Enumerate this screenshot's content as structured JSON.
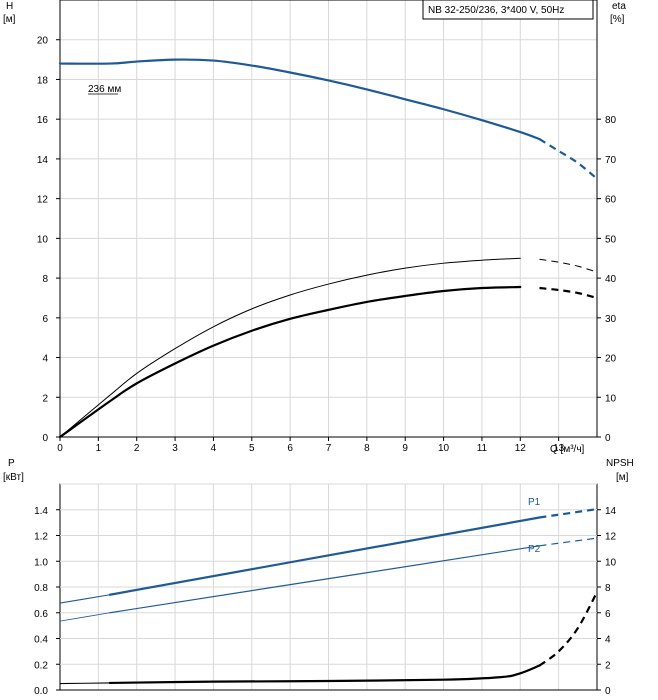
{
  "header": {
    "title": "NB 32-250/236, 3*400 V, 50Hz"
  },
  "colors": {
    "blue": "#1f5a96",
    "black": "#000000",
    "grid": "#d8d8d8"
  },
  "chart_data": [
    {
      "type": "line",
      "id": "upper",
      "x_axis": {
        "label": "Q [м³/ч]",
        "range": [
          0,
          14
        ],
        "ticks": [
          "0",
          "1",
          "2",
          "3",
          "4",
          "5",
          "6",
          "7",
          "8",
          "9",
          "10",
          "11",
          "12",
          "13"
        ]
      },
      "y_left": {
        "label_line1": "H",
        "label_line2": "[м]",
        "range": [
          0,
          22
        ],
        "ticks": [
          "0",
          "2",
          "4",
          "6",
          "8",
          "10",
          "12",
          "14",
          "16",
          "18",
          "20"
        ]
      },
      "y_right": {
        "label_line1": "eta",
        "label_line2": "[%]",
        "range": [
          0,
          110
        ],
        "ticks": [
          "0",
          "10",
          "20",
          "30",
          "40",
          "50",
          "60",
          "70",
          "80"
        ]
      },
      "annotation": "236 мм",
      "series": [
        {
          "role": "head",
          "axis": "left",
          "color": "#1f5a96",
          "width": 2.2,
          "solid_until": 12.5,
          "x": [
            0,
            1.3,
            2,
            3,
            4,
            5,
            6,
            7,
            8,
            9,
            10,
            11,
            12,
            12.5,
            13,
            13.5,
            14
          ],
          "y": [
            18.8,
            18.8,
            18.9,
            19.0,
            18.95,
            18.7,
            18.35,
            17.95,
            17.5,
            17.0,
            16.5,
            15.95,
            15.35,
            15.0,
            14.4,
            13.8,
            13.0
          ]
        },
        {
          "role": "efficiency-thin",
          "axis": "left",
          "color": "#000000",
          "width": 1,
          "solid_until": 12.4,
          "x": [
            0,
            1.3,
            2,
            3,
            4,
            5,
            6,
            7,
            8,
            9,
            10,
            11,
            12,
            12.5,
            13,
            13.5,
            14
          ],
          "y": [
            0,
            2.1,
            3.2,
            4.45,
            5.55,
            6.45,
            7.15,
            7.7,
            8.15,
            8.5,
            8.75,
            8.9,
            9.0,
            8.95,
            8.8,
            8.6,
            8.3
          ]
        },
        {
          "role": "efficiency-bold",
          "axis": "left",
          "color": "#000000",
          "width": 2.2,
          "solid_until": 12.4,
          "x": [
            0,
            1.3,
            2,
            3,
            4,
            5,
            6,
            7,
            8,
            9,
            10,
            11,
            12,
            12.5,
            13,
            13.5,
            14
          ],
          "y": [
            0,
            1.8,
            2.7,
            3.7,
            4.6,
            5.35,
            5.95,
            6.4,
            6.8,
            7.1,
            7.35,
            7.5,
            7.55,
            7.5,
            7.4,
            7.25,
            7.0
          ]
        }
      ]
    },
    {
      "type": "line",
      "id": "lower",
      "x_axis": {
        "range": [
          0,
          14
        ]
      },
      "y_left": {
        "label_line1": "P",
        "label_line2": "[кВт]",
        "range": [
          0,
          1.6
        ],
        "ticks": [
          "0.0",
          "0.2",
          "0.4",
          "0.6",
          "0.8",
          "1.0",
          "1.2",
          "1.4"
        ]
      },
      "y_right": {
        "label_line1": "NPSH",
        "label_line2": "[м]",
        "range": [
          0,
          16
        ],
        "ticks": [
          "0",
          "2",
          "4",
          "6",
          "8",
          "10",
          "12",
          "14"
        ]
      },
      "series": [
        {
          "name": "P1",
          "axis": "left",
          "color": "#1f5a96",
          "width": 2.2,
          "solid_from": 1.3,
          "solid_until": 12.5,
          "x": [
            0,
            1.3,
            12.5,
            14
          ],
          "y": [
            0.675,
            0.74,
            1.34,
            1.405
          ]
        },
        {
          "name": "P2",
          "axis": "left",
          "color": "#1f5a96",
          "width": 1.2,
          "solid_from": 1.3,
          "solid_until": 12.5,
          "x": [
            0,
            1.3,
            12.5,
            14
          ],
          "y": [
            0.535,
            0.6,
            1.12,
            1.18
          ]
        },
        {
          "role": "npsh",
          "axis": "right",
          "color": "#000000",
          "width": 2.2,
          "solid_from": 1.3,
          "solid_until": 12.5,
          "x": [
            0,
            1.3,
            4,
            7,
            10,
            11.5,
            12,
            12.5,
            13,
            13.5,
            14
          ],
          "y": [
            0.5,
            0.55,
            0.65,
            0.7,
            0.8,
            1.0,
            1.3,
            1.9,
            3.0,
            4.8,
            7.6
          ]
        }
      ]
    }
  ]
}
